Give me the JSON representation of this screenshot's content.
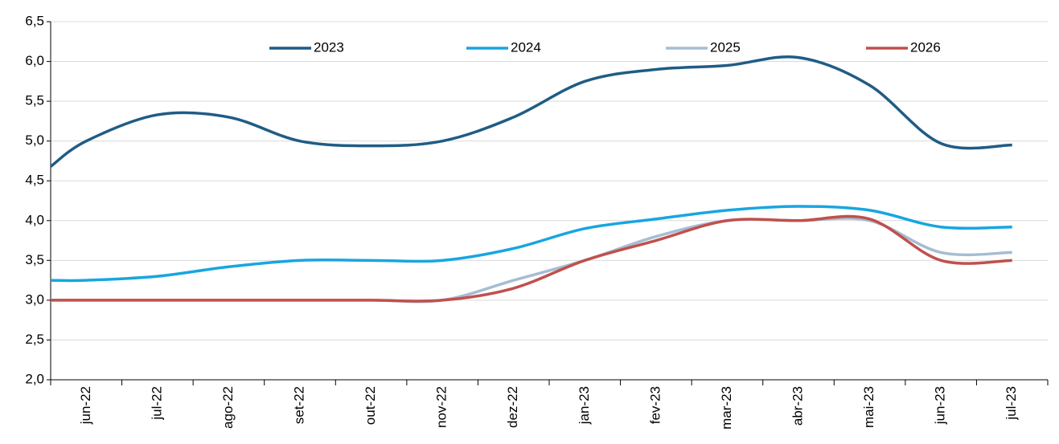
{
  "chart_data": {
    "type": "line",
    "categories": [
      null,
      "jun-22",
      "jul-22",
      "ago-22",
      "set-22",
      "out-22",
      "nov-22",
      "dez-22",
      "jan-23",
      "fev-23",
      "mar-23",
      "abr-23",
      "mai-23",
      "jun-23",
      "jul-23"
    ],
    "series": [
      {
        "name": "2023",
        "color": "#1f5c85",
        "values": [
          4.68,
          5.0,
          5.33,
          5.3,
          5.0,
          4.94,
          5.0,
          5.3,
          5.75,
          5.9,
          5.95,
          6.05,
          5.7,
          4.97,
          4.95
        ]
      },
      {
        "name": "2024",
        "color": "#17a6e0",
        "values": [
          3.25,
          3.25,
          3.3,
          3.42,
          3.5,
          3.5,
          3.5,
          3.65,
          3.9,
          4.02,
          4.13,
          4.18,
          4.13,
          3.92,
          3.92
        ]
      },
      {
        "name": "2025",
        "color": "#a6bdd2",
        "values": [
          3.0,
          3.0,
          3.0,
          3.0,
          3.0,
          3.0,
          3.0,
          3.25,
          3.5,
          3.8,
          4.0,
          4.0,
          4.0,
          3.6,
          3.6
        ]
      },
      {
        "name": "2026",
        "color": "#c0504d",
        "values": [
          3.0,
          3.0,
          3.0,
          3.0,
          3.0,
          3.0,
          3.0,
          3.15,
          3.5,
          3.75,
          4.0,
          4.0,
          4.02,
          3.5,
          3.5
        ]
      }
    ],
    "ylim": [
      2.0,
      6.5
    ],
    "yticks": [
      {
        "value": 2.0,
        "label": "2,0"
      },
      {
        "value": 2.5,
        "label": "2,5"
      },
      {
        "value": 3.0,
        "label": "3,0"
      },
      {
        "value": 3.5,
        "label": "3,5"
      },
      {
        "value": 4.0,
        "label": "4,0"
      },
      {
        "value": 4.5,
        "label": "4,5"
      },
      {
        "value": 5.0,
        "label": "5,0"
      },
      {
        "value": 5.5,
        "label": "5,5"
      },
      {
        "value": 6.0,
        "label": "6,0"
      },
      {
        "value": 6.5,
        "label": "6,5"
      }
    ],
    "grid": true,
    "legend": "top"
  }
}
